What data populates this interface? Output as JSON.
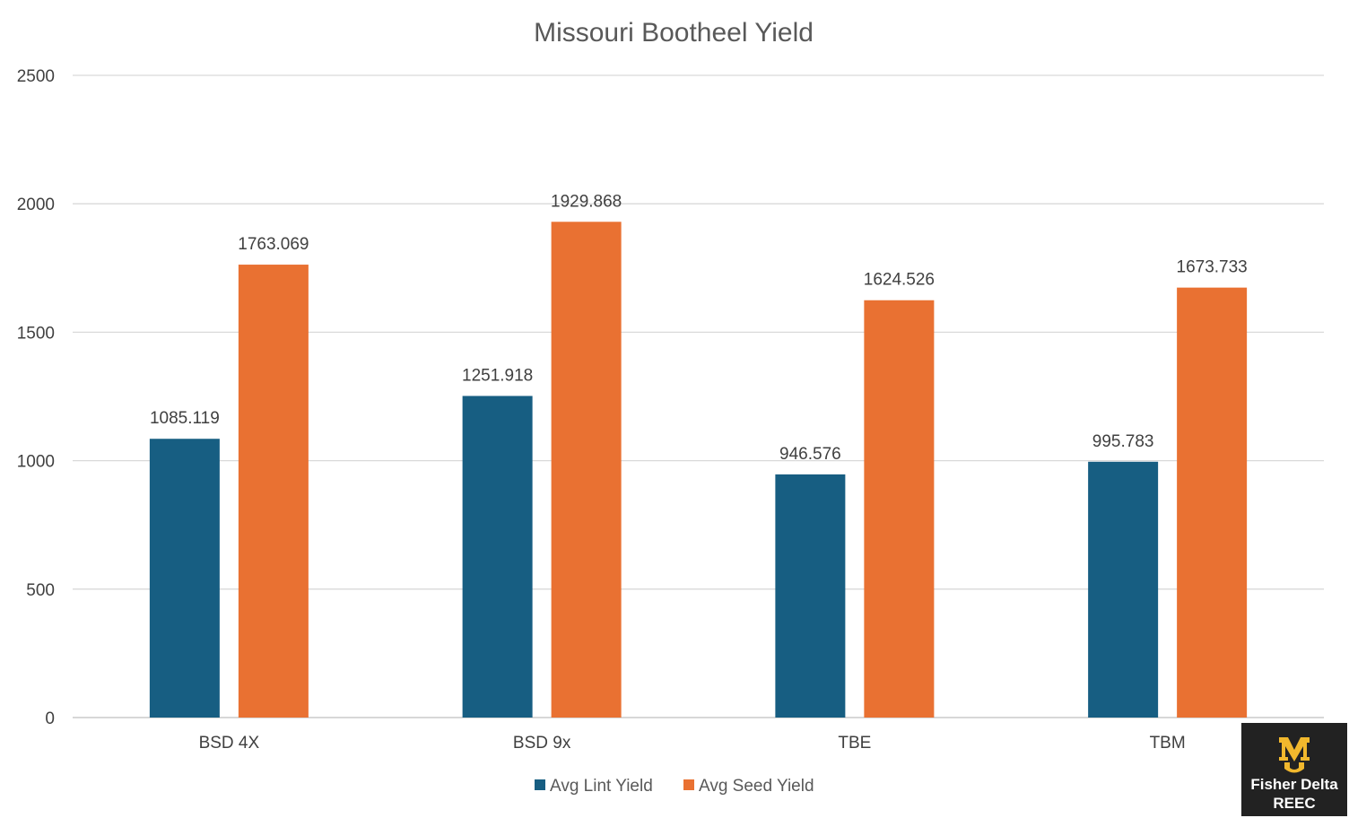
{
  "chart_data": {
    "type": "bar",
    "title": "Missouri Bootheel Yield",
    "xlabel": "",
    "ylabel": "",
    "categories": [
      "BSD 4X",
      "BSD 9x",
      "TBE",
      "TBM"
    ],
    "series": [
      {
        "name": "Avg Lint Yield",
        "values": [
          1085.119,
          1251.918,
          946.576,
          995.783
        ],
        "color": "#175E82"
      },
      {
        "name": "Avg Seed Yield",
        "values": [
          1763.069,
          1929.868,
          1624.526,
          1673.733
        ],
        "color": "#E97132"
      }
    ],
    "ylim": [
      0,
      2500
    ],
    "yticks": [
      0,
      500,
      1000,
      1500,
      2000,
      2500
    ],
    "grid": true,
    "legend_position": "bottom"
  },
  "logo": {
    "line1": "Fisher Delta",
    "line2": "REEC",
    "background": "#222222",
    "accent": "#F1B82D"
  }
}
